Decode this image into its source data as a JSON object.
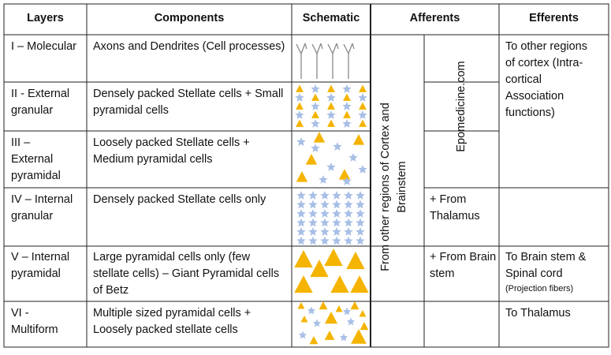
{
  "header": [
    "Layers",
    "Components",
    "Schematic",
    "Afferents",
    "Efferents"
  ],
  "rows": [
    {
      "layer": "I – Molecular",
      "components": "Axons and Dendrites (Cell processes)"
    },
    {
      "layer": "II - External granular",
      "components": "Densely packed Stellate cells + Small pyramidal cells"
    },
    {
      "layer": "III – External pyramidal",
      "components": "Loosely packed Stellate cells + Medium pyramidal cells"
    },
    {
      "layer": "IV – Internal granular",
      "components": "Densely packed Stellate cells only"
    },
    {
      "layer": "V – Internal pyramidal",
      "components": "Large pyramidal cells only (few stellate cells) – Giant Pyramidal cells of Betz"
    },
    {
      "layer": "VI - Multiform",
      "components": "Multiple sized pyramidal cells + Loosely packed stellate cells"
    }
  ],
  "afferents": {
    "common": "From other regions of Cortex and Brainstem",
    "watermark": "Epomedicine.com",
    "layer_iv": "+ From Thalamus",
    "layer_v": "+ From Brain stem"
  },
  "efferents": {
    "layers_i_iii": "To other regions of cortex (Intra-cortical Association functions)",
    "layer_v": "To Brain stem & Spinal cord",
    "layer_v_note": "(Projection fibers)",
    "layer_vi": "To Thalamus"
  }
}
